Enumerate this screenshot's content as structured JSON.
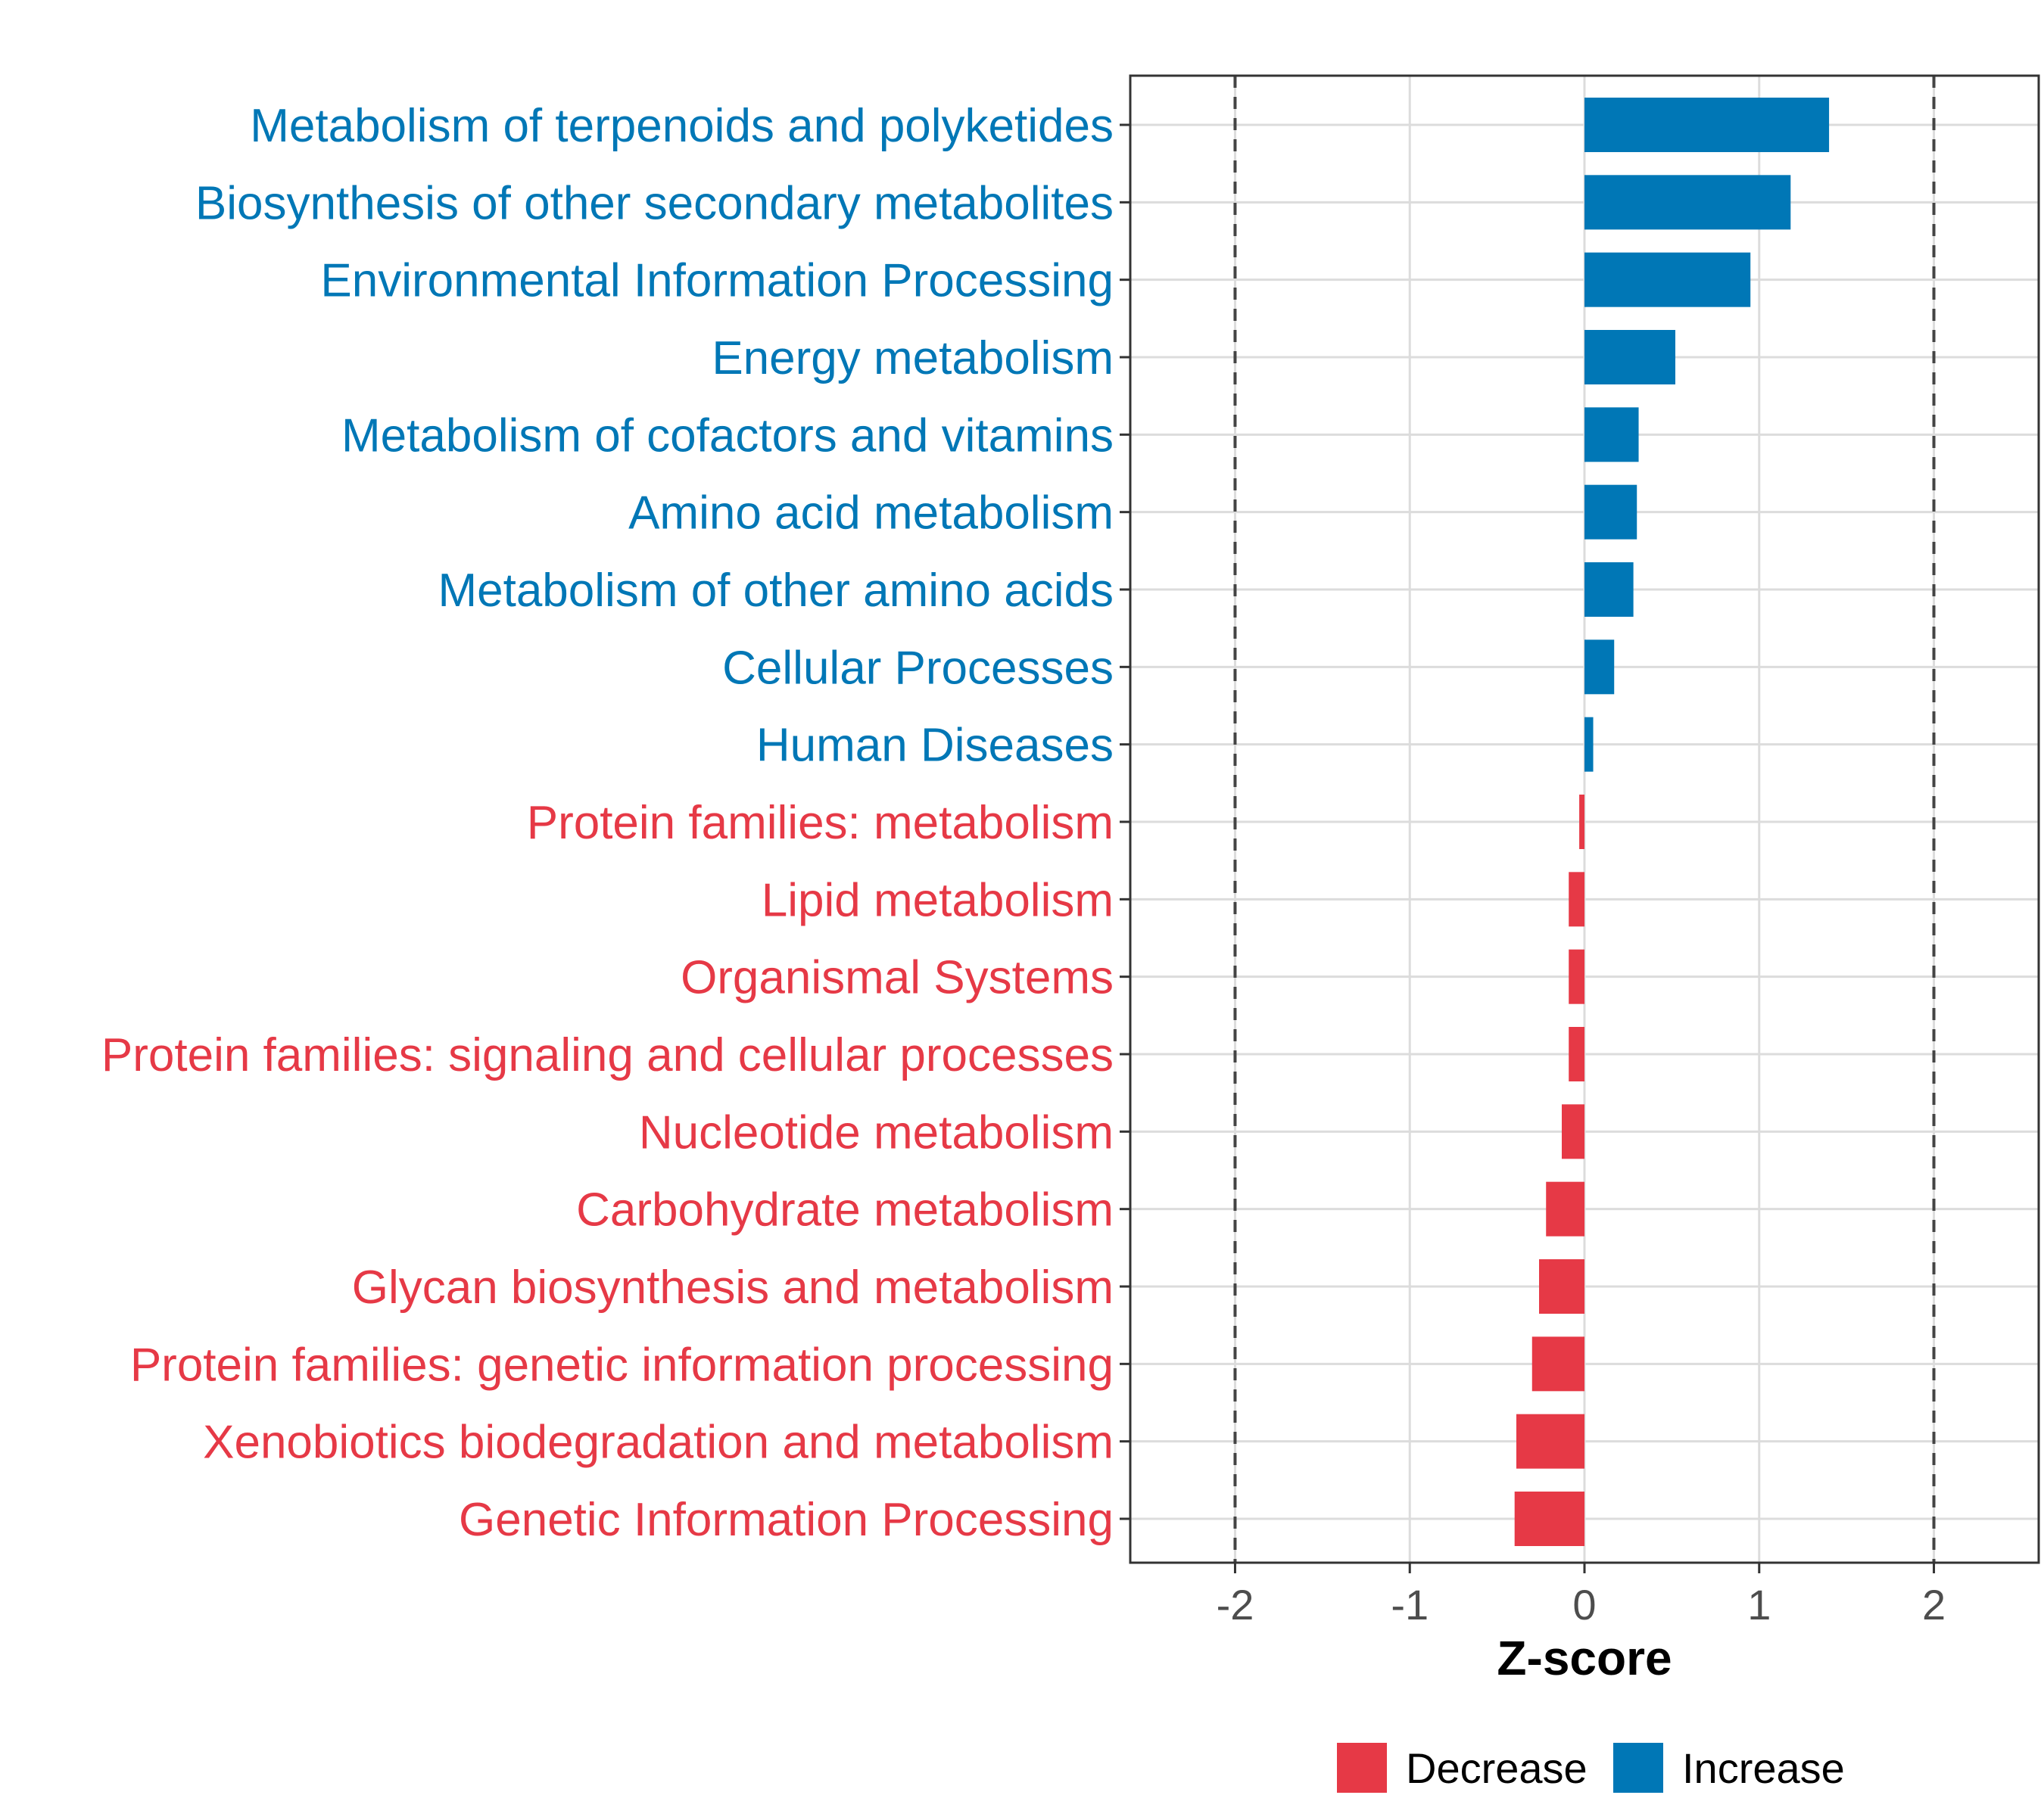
{
  "chart_data": {
    "type": "bar",
    "orientation": "horizontal",
    "title": "",
    "xlabel": "Z-score",
    "ylabel": "",
    "xlim": [
      -2.6,
      2.6
    ],
    "xticks": [
      -2,
      -1,
      0,
      1,
      2
    ],
    "xtick_labels": [
      "-2",
      "-1",
      "0",
      "1",
      "2"
    ],
    "reference_lines": [
      -2,
      2
    ],
    "grid": true,
    "legend_position": "bottom",
    "colors": {
      "Decrease": "#E63946",
      "Increase": "#0077B6"
    },
    "legend": [
      {
        "name": "Decrease",
        "label": "Decrease"
      },
      {
        "name": "Increase",
        "label": "Increase"
      }
    ],
    "categories": [
      "Metabolism of terpenoids and polyketides",
      "Biosynthesis of other secondary metabolites",
      "Environmental Information Processing",
      "Energy metabolism",
      "Metabolism of cofactors and vitamins",
      "Amino acid metabolism",
      "Metabolism of other amino acids",
      "Cellular Processes",
      "Human Diseases",
      "Protein families: metabolism",
      "Lipid metabolism",
      "Organismal Systems",
      "Protein families: signaling and cellular processes",
      "Nucleotide metabolism",
      "Carbohydrate metabolism",
      "Glycan biosynthesis and metabolism",
      "Protein families: genetic information processing",
      "Xenobiotics biodegradation and metabolism",
      "Genetic Information Processing"
    ],
    "values": [
      1.4,
      1.18,
      0.95,
      0.52,
      0.31,
      0.3,
      0.28,
      0.17,
      0.05,
      -0.03,
      -0.09,
      -0.09,
      -0.09,
      -0.13,
      -0.22,
      -0.26,
      -0.3,
      -0.39,
      -0.4
    ],
    "groups": [
      "Increase",
      "Increase",
      "Increase",
      "Increase",
      "Increase",
      "Increase",
      "Increase",
      "Increase",
      "Increase",
      "Decrease",
      "Decrease",
      "Decrease",
      "Decrease",
      "Decrease",
      "Decrease",
      "Decrease",
      "Decrease",
      "Decrease",
      "Decrease"
    ]
  }
}
